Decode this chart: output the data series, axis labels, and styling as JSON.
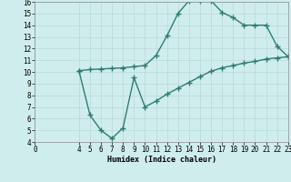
{
  "xlabel": "Humidex (Indice chaleur)",
  "xlim": [
    0,
    23
  ],
  "ylim": [
    4,
    16
  ],
  "xticks": [
    0,
    4,
    5,
    6,
    7,
    8,
    9,
    10,
    11,
    12,
    13,
    14,
    15,
    16,
    17,
    18,
    19,
    20,
    21,
    22,
    23
  ],
  "yticks": [
    4,
    5,
    6,
    7,
    8,
    9,
    10,
    11,
    12,
    13,
    14,
    15,
    16
  ],
  "line_color": "#2e7d6e",
  "bg_color": "#d0eded",
  "grid_color": "#b8d8d8",
  "line1_x": [
    4,
    5,
    6,
    7,
    8,
    9,
    10,
    11,
    12,
    13,
    14,
    15,
    16,
    17,
    18,
    19,
    20,
    21,
    22,
    23
  ],
  "line1_y": [
    10.1,
    10.2,
    10.25,
    10.3,
    10.35,
    10.45,
    10.55,
    11.4,
    13.1,
    15.0,
    16.1,
    16.1,
    16.1,
    15.1,
    14.65,
    14.0,
    14.0,
    14.0,
    12.2,
    11.3
  ],
  "line2_x": [
    4,
    5,
    6,
    7,
    8,
    9,
    10,
    11,
    12,
    13,
    14,
    15,
    16,
    17,
    18,
    19,
    20,
    21,
    22,
    23
  ],
  "line2_y": [
    10.1,
    6.3,
    5.0,
    4.3,
    5.2,
    9.5,
    7.0,
    7.5,
    8.1,
    8.6,
    9.1,
    9.6,
    10.05,
    10.35,
    10.55,
    10.75,
    10.9,
    11.1,
    11.2,
    11.3
  ],
  "marker": "+",
  "markersize": 4,
  "markeredgewidth": 1.0,
  "linewidth": 1.0,
  "axis_fontsize": 6,
  "tick_fontsize": 5.5
}
